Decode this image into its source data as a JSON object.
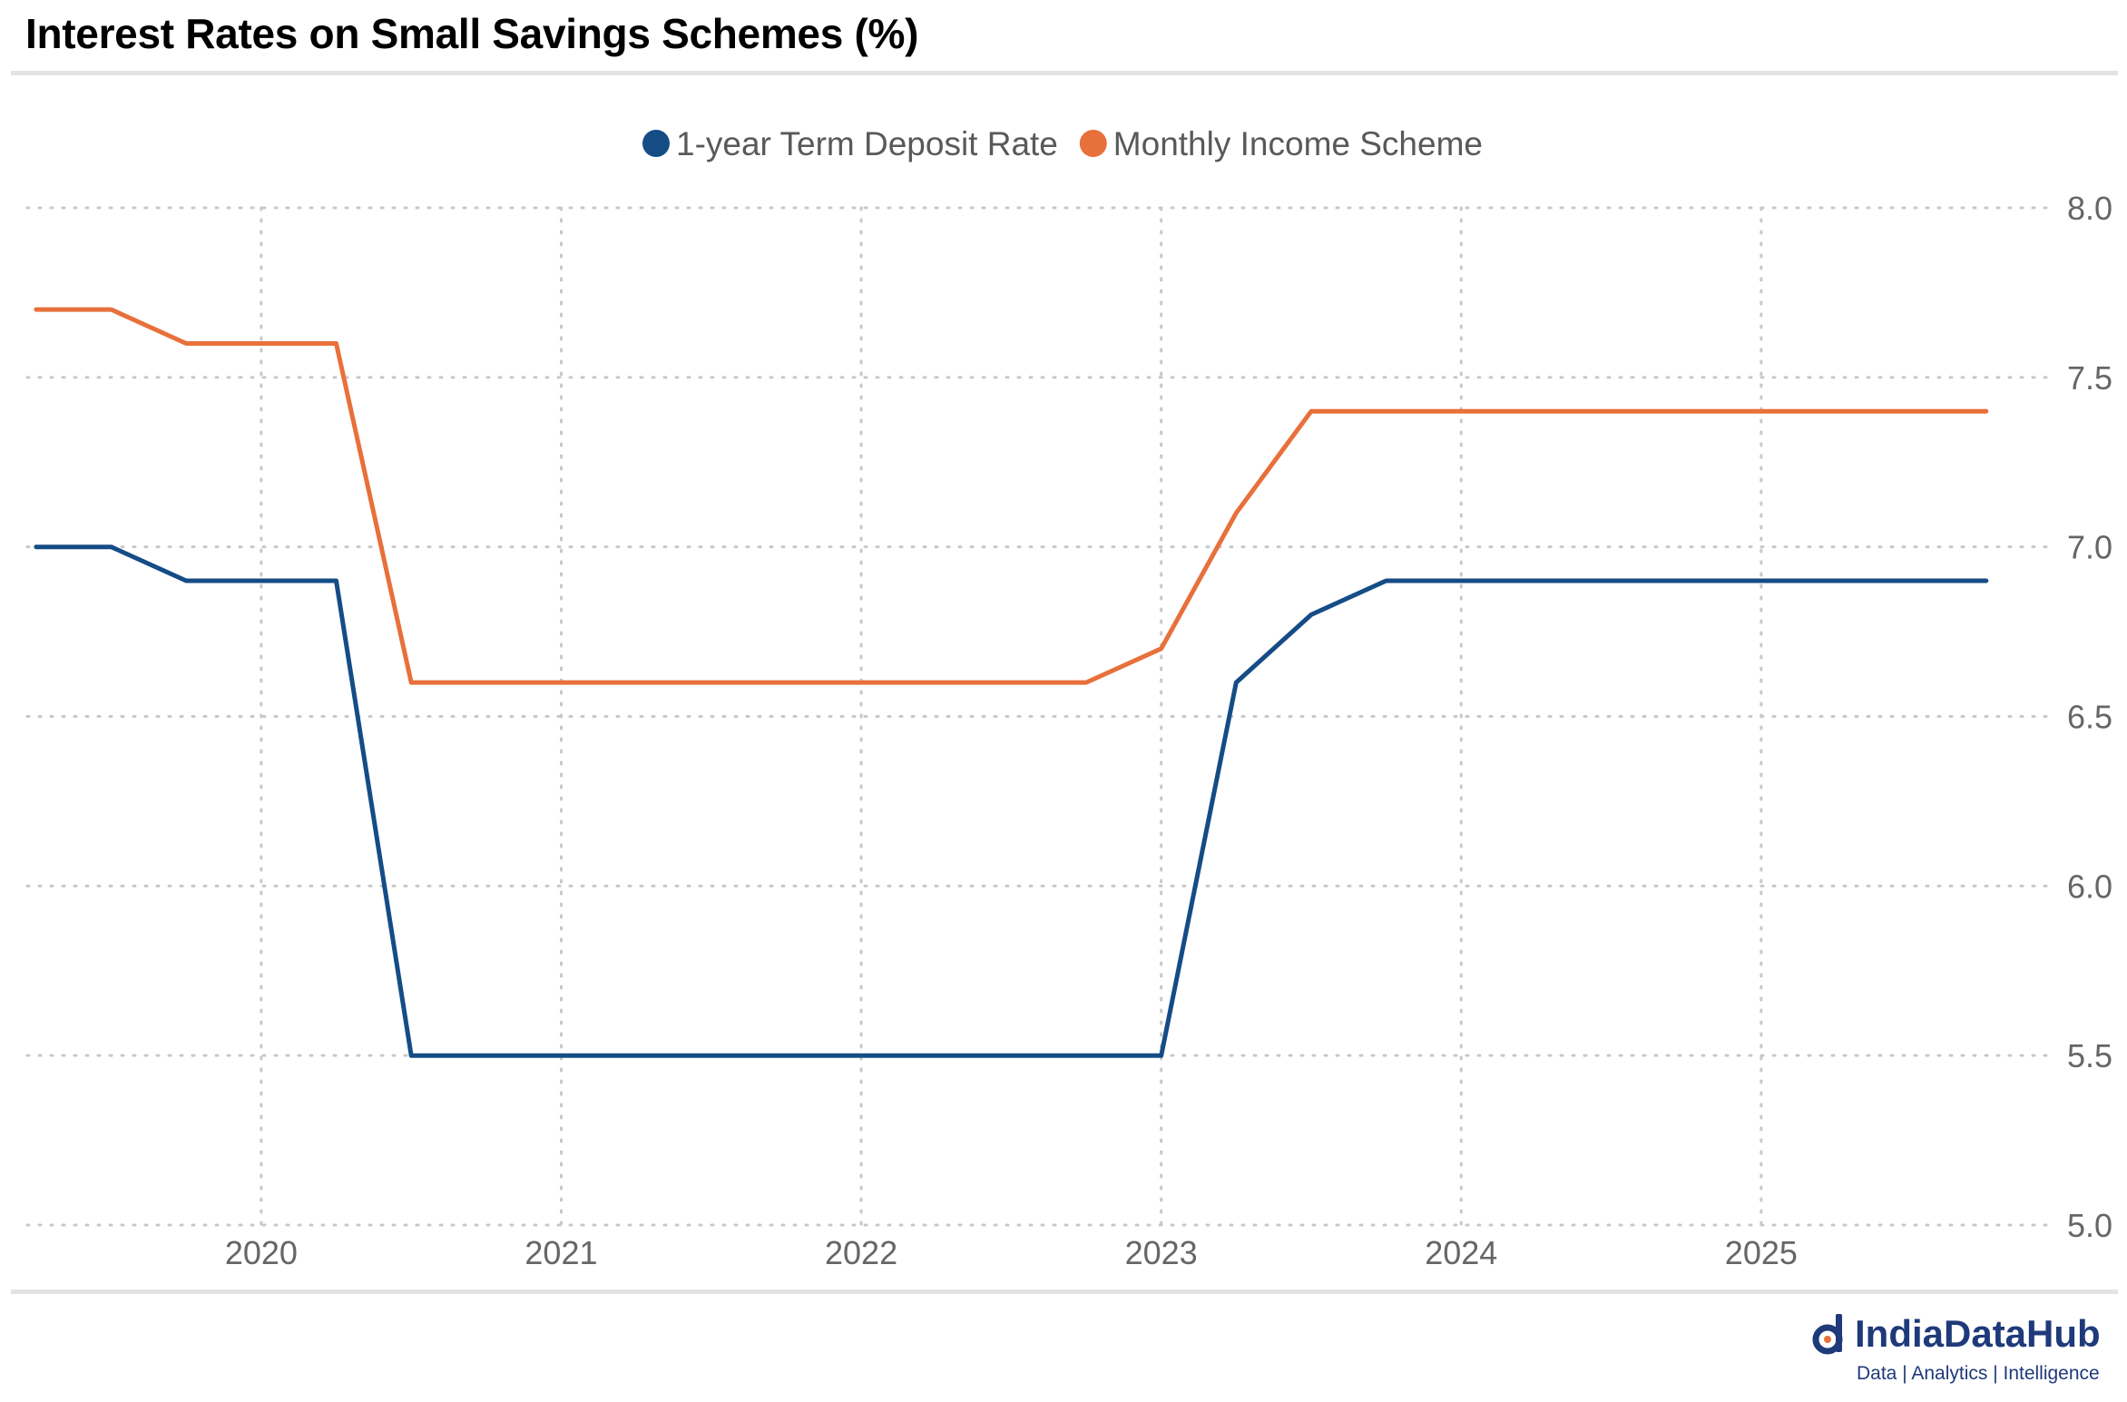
{
  "title": "Interest Rates on Small Savings Schemes (%)",
  "brand": {
    "name": "IndiaDataHub",
    "tagline": "Data | Analytics | Intelligence"
  },
  "colors": {
    "series_1": "#154c86",
    "series_2": "#e8703a",
    "grid": "#c8c8c8",
    "axis_text": "#666666"
  },
  "chart_data": {
    "type": "line",
    "title": "Interest Rates on Small Savings Schemes (%)",
    "xlabel": "",
    "ylabel": "",
    "x": [
      2019.25,
      2019.5,
      2019.75,
      2020.0,
      2020.25,
      2020.5,
      2020.75,
      2021.0,
      2021.25,
      2021.5,
      2021.75,
      2022.0,
      2022.25,
      2022.5,
      2022.75,
      2023.0,
      2023.25,
      2023.5,
      2023.75,
      2024.0,
      2024.25,
      2024.5,
      2024.75,
      2025.0,
      2025.25,
      2025.5,
      2025.75
    ],
    "xlim": [
      2019.22,
      2025.92
    ],
    "x_ticks": [
      2020,
      2021,
      2022,
      2023,
      2024,
      2025
    ],
    "x_tick_labels": [
      "2020",
      "2021",
      "2022",
      "2023",
      "2024",
      "2025"
    ],
    "ylim": [
      5.0,
      8.0
    ],
    "y_ticks": [
      5.0,
      5.5,
      6.0,
      6.5,
      7.0,
      7.5,
      8.0
    ],
    "y_tick_labels": [
      "5.0",
      "5.5",
      "6.0",
      "6.5",
      "7.0",
      "7.5",
      "8.0"
    ],
    "y_axis_side": "right",
    "grid": true,
    "legend_position": "top-center",
    "series": [
      {
        "name": "1-year Term Deposit Rate",
        "color": "#154c86",
        "values": [
          7.0,
          7.0,
          6.9,
          6.9,
          6.9,
          5.5,
          5.5,
          5.5,
          5.5,
          5.5,
          5.5,
          5.5,
          5.5,
          5.5,
          5.5,
          5.5,
          6.6,
          6.8,
          6.9,
          6.9,
          6.9,
          6.9,
          6.9,
          6.9,
          6.9,
          6.9,
          6.9
        ]
      },
      {
        "name": "Monthly Income Scheme",
        "color": "#e8703a",
        "values": [
          7.7,
          7.7,
          7.6,
          7.6,
          7.6,
          6.6,
          6.6,
          6.6,
          6.6,
          6.6,
          6.6,
          6.6,
          6.6,
          6.6,
          6.6,
          6.7,
          7.1,
          7.4,
          7.4,
          7.4,
          7.4,
          7.4,
          7.4,
          7.4,
          7.4,
          7.4,
          7.4
        ]
      }
    ]
  }
}
